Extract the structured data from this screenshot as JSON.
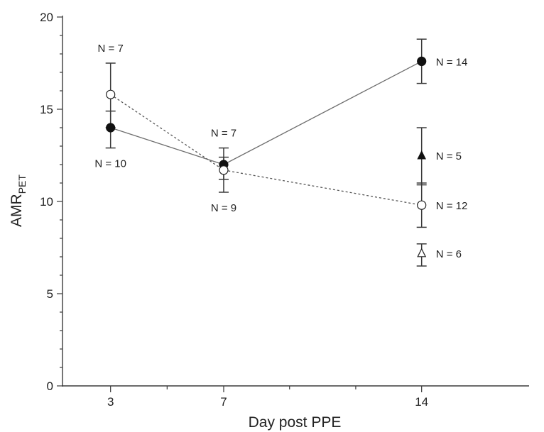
{
  "chart_data": {
    "type": "line",
    "xlabel": "Day post PPE",
    "ylabel_main": "AMR",
    "ylabel_sub": "PET",
    "ylim": [
      0,
      20
    ],
    "xlim": [
      1.3,
      17.8
    ],
    "y_major_ticks": [
      0,
      5,
      10,
      15,
      20
    ],
    "y_minor_ticks": [
      1,
      2,
      3,
      4,
      6,
      7,
      8,
      9,
      11,
      12,
      13,
      14,
      16,
      17,
      18,
      19
    ],
    "x_major_ticks": [
      3,
      7,
      14
    ],
    "x_minor_ticks": [
      5,
      9.33,
      11.67
    ],
    "series": [
      {
        "marker": "filled-circle",
        "line": "solid",
        "points": [
          {
            "x": 3,
            "y": 14.0,
            "err_low": 12.9,
            "err_high": 14.9,
            "n_label": "N = 10",
            "label_pos": "below"
          },
          {
            "x": 7,
            "y": 12.0,
            "err_low": 11.2,
            "err_high": 12.9,
            "n_label": "N = 7",
            "label_pos": "above"
          },
          {
            "x": 14,
            "y": 17.6,
            "err_low": 16.4,
            "err_high": 18.8,
            "n_label": "N = 14",
            "label_pos": "right"
          }
        ]
      },
      {
        "marker": "open-circle",
        "line": "dotted",
        "points": [
          {
            "x": 3,
            "y": 15.8,
            "err_low": 14.0,
            "err_high": 17.5,
            "n_label": "N = 7",
            "label_pos": "above"
          },
          {
            "x": 7,
            "y": 11.7,
            "err_low": 10.5,
            "err_high": 12.4,
            "n_label": "N = 9",
            "label_pos": "below"
          },
          {
            "x": 14,
            "y": 9.8,
            "err_low": 8.6,
            "err_high": 11.0,
            "n_label": "N = 12",
            "label_pos": "right"
          }
        ]
      },
      {
        "marker": "filled-triangle",
        "line": "none",
        "points": [
          {
            "x": 14,
            "y": 12.5,
            "err_low": 10.9,
            "err_high": 14.0,
            "n_label": "N = 5",
            "label_pos": "right"
          }
        ]
      },
      {
        "marker": "open-triangle",
        "line": "none",
        "points": [
          {
            "x": 14,
            "y": 7.2,
            "err_low": 6.5,
            "err_high": 7.7,
            "n_label": "N = 6",
            "label_pos": "right"
          }
        ]
      }
    ]
  }
}
